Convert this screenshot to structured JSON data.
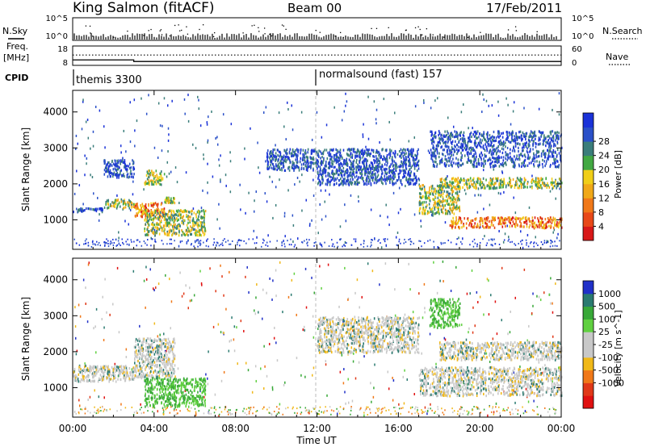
{
  "header": {
    "station": "King Salmon (fitACF)",
    "beam": "Beam 00",
    "date": "17/Feb/2011"
  },
  "noise_panel": {
    "left_label": "N.Sky",
    "right_label": "N.Search",
    "left_ticks": [
      "10^5",
      "10^0"
    ],
    "right_ticks": [
      "10^5",
      "10^0"
    ]
  },
  "freq_panel": {
    "left_label_line1": "Freq.",
    "left_label_line2": "[MHz]",
    "right_label": "Nave",
    "left_ticks": [
      "18",
      "8"
    ],
    "right_ticks": [
      "60",
      "0"
    ],
    "freq_mhz_steps": [
      {
        "from_hour": 0,
        "to_hour": 3,
        "freq_mhz": 10.8
      },
      {
        "from_hour": 3,
        "to_hour": 24,
        "freq_mhz": 10.0
      }
    ],
    "nave_level": 32
  },
  "cpid_panel": {
    "label": "CPID",
    "segments": [
      {
        "start_hour": 0,
        "label": "themis 3300"
      },
      {
        "start_hour": 12,
        "label": "normalsound (fast) 157"
      }
    ]
  },
  "x_axis": {
    "label": "Time UT",
    "range_hours": [
      0,
      24
    ],
    "ticks": [
      "00:00",
      "04:00",
      "08:00",
      "12:00",
      "16:00",
      "20:00",
      "00:00"
    ]
  },
  "chart_data": [
    {
      "type": "heatmap",
      "parameter": "power",
      "ylabel": "Slant Range [km]",
      "ylim": [
        180,
        4600
      ],
      "yticks": [
        "1000",
        "2000",
        "3000",
        "4000"
      ],
      "colorbar": {
        "label": "Power [dB]",
        "ticks": [
          "4",
          "8",
          "12",
          "16",
          "20",
          "24",
          "28"
        ],
        "colors": [
          "#1a32d8",
          "#2a50c8",
          "#3a7d7a",
          "#42a842",
          "#f0ce18",
          "#f0a818",
          "#f07818",
          "#e84818",
          "#d81818"
        ]
      },
      "bands": [
        {
          "start_hour": 0.0,
          "end_hour": 1.5,
          "range_start_km": 1250,
          "range_end_km": 1350,
          "level": "low"
        },
        {
          "start_hour": 1.5,
          "end_hour": 3.0,
          "range_start_km": 1350,
          "range_end_km": 1600,
          "level": "mid"
        },
        {
          "start_hour": 3.0,
          "end_hour": 4.5,
          "range_start_km": 1100,
          "range_end_km": 1500,
          "level": "high"
        },
        {
          "start_hour": 4.5,
          "end_hour": 5.0,
          "range_start_km": 1500,
          "range_end_km": 1650,
          "level": "mid"
        },
        {
          "start_hour": 1.5,
          "end_hour": 3.0,
          "range_start_km": 2200,
          "range_end_km": 2700,
          "level": "low"
        },
        {
          "start_hour": 3.5,
          "end_hour": 4.5,
          "range_start_km": 2000,
          "range_end_km": 2400,
          "level": "mid"
        },
        {
          "start_hour": 3.5,
          "end_hour": 6.5,
          "range_start_km": 600,
          "range_end_km": 1300,
          "level": "mid"
        },
        {
          "start_hour": 9.5,
          "end_hour": 12.0,
          "range_start_km": 2400,
          "range_end_km": 3000,
          "level": "low"
        },
        {
          "start_hour": 12.0,
          "end_hour": 17.0,
          "range_start_km": 2000,
          "range_end_km": 3000,
          "level": "low"
        },
        {
          "start_hour": 17.0,
          "end_hour": 19.0,
          "range_start_km": 1200,
          "range_end_km": 2000,
          "level": "mid"
        },
        {
          "start_hour": 18.5,
          "end_hour": 24.0,
          "range_start_km": 800,
          "range_end_km": 1100,
          "level": "high"
        },
        {
          "start_hour": 18.0,
          "end_hour": 24.0,
          "range_start_km": 1900,
          "range_end_km": 2200,
          "level": "mid"
        },
        {
          "start_hour": 17.5,
          "end_hour": 24.0,
          "range_start_km": 2500,
          "range_end_km": 3500,
          "level": "low"
        }
      ]
    },
    {
      "type": "heatmap",
      "parameter": "velocity",
      "ylabel": "Slant Range [km]",
      "ylim": [
        180,
        4600
      ],
      "yticks": [
        "1000",
        "2000",
        "3000",
        "4000"
      ],
      "colorbar": {
        "label": "Velocity [m s^-1]",
        "ticks": [
          "1000",
          "500",
          "100",
          "25",
          "-25",
          "-100",
          "-500",
          "-1000"
        ],
        "colors": [
          "#2030c8",
          "#2a7a70",
          "#38a838",
          "#60d040",
          "#c8c8c8",
          "#c8c8c8",
          "#f0b818",
          "#f07818",
          "#e03818",
          "#e01010"
        ]
      },
      "bands": [
        {
          "start_hour": 0.0,
          "end_hour": 3.0,
          "range_start_km": 1200,
          "range_end_km": 1650,
          "level": "zero"
        },
        {
          "start_hour": 3.0,
          "end_hour": 5.0,
          "range_start_km": 1300,
          "range_end_km": 2400,
          "level": "zero"
        },
        {
          "start_hour": 3.5,
          "end_hour": 6.5,
          "range_start_km": 500,
          "range_end_km": 1300,
          "level": "positive"
        },
        {
          "start_hour": 12.0,
          "end_hour": 17.0,
          "range_start_km": 2000,
          "range_end_km": 3000,
          "level": "zero"
        },
        {
          "start_hour": 17.0,
          "end_hour": 24.0,
          "range_start_km": 800,
          "range_end_km": 1600,
          "level": "zero"
        },
        {
          "start_hour": 18.0,
          "end_hour": 24.0,
          "range_start_km": 1800,
          "range_end_km": 2300,
          "level": "zero"
        },
        {
          "start_hour": 17.5,
          "end_hour": 19.0,
          "range_start_km": 2700,
          "range_end_km": 3500,
          "level": "positive"
        }
      ]
    }
  ]
}
